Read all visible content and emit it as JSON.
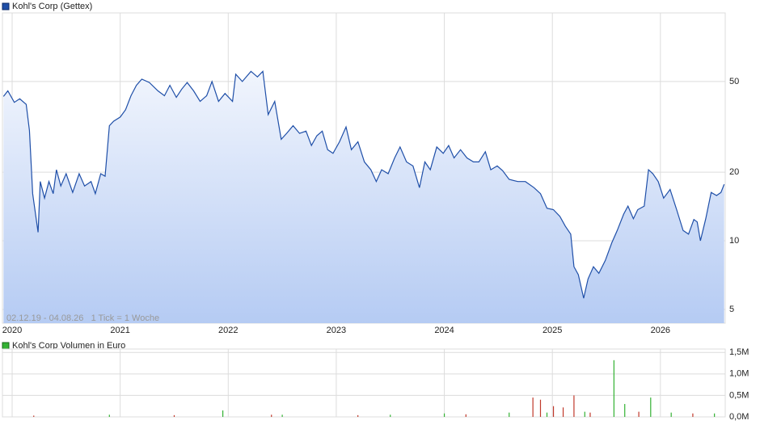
{
  "chart_data": [
    {
      "type": "line",
      "log_scale": true,
      "grid": true,
      "annotation": "02.12.19 - 04.08.26   1 Tick = 1 Woche",
      "xlim": [
        2019.91,
        2026.6
      ],
      "xticks": [
        2020,
        2021,
        2022,
        2023,
        2024,
        2025,
        2026
      ],
      "ylim": [
        4.35,
        100
      ],
      "yticks": [
        5,
        10,
        20,
        50
      ],
      "series": [
        {
          "name": "Kohl's Corp (Gettex)",
          "color": "#1f4fa8",
          "x": [
            2019.92,
            2019.96,
            2020.02,
            2020.07,
            2020.13,
            2020.16,
            2020.19,
            2020.24,
            2020.26,
            2020.3,
            2020.34,
            2020.38,
            2020.41,
            2020.45,
            2020.5,
            2020.56,
            2020.62,
            2020.67,
            2020.73,
            2020.77,
            2020.82,
            2020.86,
            2020.9,
            2020.94,
            2021.0,
            2021.05,
            2021.1,
            2021.15,
            2021.2,
            2021.27,
            2021.35,
            2021.41,
            2021.46,
            2021.52,
            2021.57,
            2021.62,
            2021.68,
            2021.74,
            2021.8,
            2021.85,
            2021.91,
            2021.97,
            2022.04,
            2022.07,
            2022.13,
            2022.21,
            2022.27,
            2022.32,
            2022.37,
            2022.43,
            2022.49,
            2022.54,
            2022.6,
            2022.66,
            2022.72,
            2022.77,
            2022.82,
            2022.87,
            2022.92,
            2022.97,
            2023.03,
            2023.09,
            2023.14,
            2023.2,
            2023.26,
            2023.32,
            2023.37,
            2023.42,
            2023.48,
            2023.54,
            2023.59,
            2023.65,
            2023.71,
            2023.77,
            2023.82,
            2023.87,
            2023.93,
            2023.99,
            2024.04,
            2024.09,
            2024.15,
            2024.21,
            2024.27,
            2024.32,
            2024.38,
            2024.43,
            2024.49,
            2024.54,
            2024.6,
            2024.68,
            2024.75,
            2024.83,
            2024.89,
            2024.95,
            2025.01,
            2025.07,
            2025.12,
            2025.17,
            2025.2,
            2025.24,
            2025.29,
            2025.33,
            2025.38,
            2025.43,
            2025.49,
            2025.55,
            2025.6,
            2025.66,
            2025.7,
            2025.75,
            2025.79,
            2025.85,
            2025.89,
            2025.93,
            2025.98,
            2026.03,
            2026.09,
            2026.15,
            2026.21,
            2026.26,
            2026.31,
            2026.34,
            2026.37,
            2026.42,
            2026.47,
            2026.52,
            2026.56,
            2026.59
          ],
          "values": [
            43.0,
            45.5,
            40.5,
            42,
            39.7,
            30.5,
            16.1,
            10.9,
            18.2,
            15.4,
            18.2,
            16.1,
            20.5,
            17.4,
            19.7,
            16.3,
            19.7,
            17.4,
            18.2,
            16.1,
            19.7,
            19.2,
            32,
            33.5,
            34.9,
            37.6,
            43.3,
            48.1,
            51.2,
            49.5,
            45.5,
            43.3,
            48.1,
            42.6,
            46.3,
            49.5,
            45.5,
            40.9,
            43.3,
            50,
            40.9,
            44.3,
            40.9,
            53.8,
            50,
            55.4,
            52.4,
            55.4,
            35.8,
            40.9,
            27.9,
            29.6,
            32,
            29.6,
            30.3,
            26.2,
            28.9,
            30.3,
            25.1,
            24.2,
            27.2,
            31.6,
            25.1,
            27.2,
            22.2,
            20.5,
            18.2,
            20.5,
            19.7,
            23.1,
            25.8,
            22.2,
            21.3,
            17.1,
            22.2,
            20.5,
            25.8,
            24.2,
            26.2,
            23.1,
            25.1,
            23.1,
            22.2,
            22.2,
            24.6,
            20.5,
            21.3,
            20.3,
            18.6,
            18.2,
            18.2,
            17.1,
            16.1,
            13.9,
            13.7,
            12.8,
            11.6,
            10.7,
            7.7,
            7.1,
            5.6,
            6.8,
            7.7,
            7.2,
            8.2,
            9.8,
            11.1,
            13.1,
            14.2,
            12.5,
            13.7,
            14.2,
            20.5,
            19.7,
            18.2,
            15.4,
            16.8,
            13.7,
            11.1,
            10.7,
            12.4,
            12.1,
            10,
            12.5,
            16.3,
            15.8,
            16.3,
            17.7
          ]
        }
      ]
    },
    {
      "type": "bar",
      "grid": true,
      "xlim": [
        2019.91,
        2026.6
      ],
      "xticks": [
        2020,
        2021,
        2022,
        2023,
        2024,
        2025,
        2026
      ],
      "ylim": [
        0,
        1580000
      ],
      "yticks": [
        {
          "value": 0,
          "label": "0,0M"
        },
        {
          "value": 500000,
          "label": "0,5M"
        },
        {
          "value": 1000000,
          "label": "1,0M"
        },
        {
          "value": 1500000,
          "label": "1,5M"
        }
      ],
      "series": [
        {
          "name": "Kohl's Corp Volumen in Euro",
          "color": "#33b233",
          "x": [
            2020.9,
            2021.95,
            2022.5,
            2023.5,
            2024.0,
            2024.6,
            2024.95,
            2025.3,
            2025.57,
            2025.67,
            2025.91,
            2026.1,
            2026.5
          ],
          "values": [
            50000,
            150000,
            50000,
            50000,
            80000,
            100000,
            100000,
            120000,
            1320000,
            300000,
            450000,
            100000,
            80000
          ]
        },
        {
          "color": "#c0392b",
          "x": [
            2020.2,
            2021.5,
            2022.4,
            2023.2,
            2024.2,
            2024.82,
            2024.89,
            2025.01,
            2025.1,
            2025.2,
            2025.35,
            2025.8,
            2026.3
          ],
          "values": [
            30000,
            40000,
            50000,
            40000,
            60000,
            450000,
            400000,
            250000,
            220000,
            500000,
            100000,
            120000,
            80000
          ]
        }
      ]
    }
  ]
}
